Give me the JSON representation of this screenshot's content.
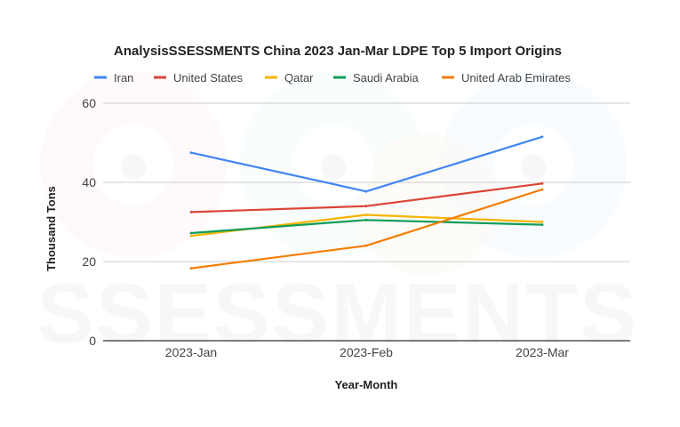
{
  "chart_data": {
    "type": "line",
    "title": "AnalysisSSESSMENTS China 2023 Jan-Mar LDPE Top 5 Import Origins",
    "xlabel": "Year-Month",
    "ylabel": "Thousand Tons",
    "categories": [
      "2023-Jan",
      "2023-Feb",
      "2023-Mar"
    ],
    "ylim": [
      0,
      60
    ],
    "yticks": [
      0,
      20,
      40,
      60
    ],
    "grid": true,
    "legend_position": "top",
    "watermark": "SSESSMENTS",
    "series": [
      {
        "name": "Iran",
        "color": "#4285F4",
        "values": [
          47.5,
          37.7,
          51.5
        ]
      },
      {
        "name": "United States",
        "color": "#DB4437",
        "values": [
          32.5,
          34.0,
          39.7
        ]
      },
      {
        "name": "Qatar",
        "color": "#F4B400",
        "values": [
          26.5,
          31.8,
          30.0
        ]
      },
      {
        "name": "Saudi Arabia",
        "color": "#0F9D58",
        "values": [
          27.2,
          30.5,
          29.3
        ]
      },
      {
        "name": "United Arab Emirates",
        "color": "#F57C00",
        "values": [
          18.3,
          24.0,
          38.2
        ]
      }
    ]
  }
}
